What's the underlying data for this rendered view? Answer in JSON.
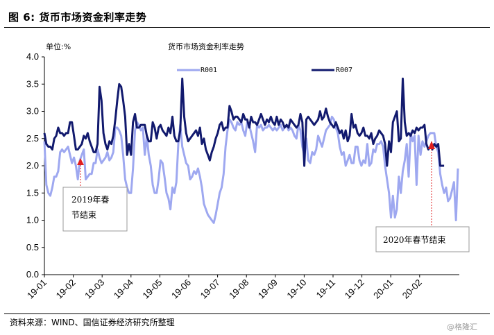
{
  "figure": {
    "title": "图 6:  货币市场资金利率走势",
    "source": "资料来源：WIND、国信证券经济研究所整理",
    "watermark": "@格隆汇"
  },
  "chart_data": {
    "type": "line",
    "title": "货币市场资金利率走势",
    "ylabel": "单位:%",
    "xlabel": "",
    "ylim": [
      0.0,
      4.0
    ],
    "yticks": [
      "0.0",
      "0.5",
      "1.0",
      "1.5",
      "2.0",
      "2.5",
      "3.0",
      "3.5",
      "4.0"
    ],
    "xticks": [
      "19-01",
      "19-02",
      "19-03",
      "19-04",
      "19-05",
      "19-06",
      "19-07",
      "19-08",
      "19-09",
      "19-10",
      "19-11",
      "19-12",
      "20-01",
      "20-02"
    ],
    "grid": false,
    "legend": "top",
    "colors": {
      "R001": "#9ea8f0",
      "R007": "#121a6e",
      "arrow": "#e02020"
    },
    "annotations": [
      {
        "text_line1": "2019年春",
        "text_line2": "节结束",
        "x": "19-02"
      },
      {
        "text_line1": "2020年春节结束",
        "x": "20-02"
      }
    ],
    "series": [
      {
        "name": "R001",
        "values": [
          2.45,
          1.65,
          1.5,
          1.45,
          1.6,
          1.8,
          1.8,
          1.9,
          2.25,
          2.3,
          2.25,
          2.3,
          2.35,
          2.2,
          2.05,
          2.15,
          2.0,
          1.75,
          2.1,
          2.2,
          2.3,
          1.75,
          1.8,
          1.85,
          1.85,
          2.05,
          2.05,
          2.3,
          2.15,
          2.05,
          2.1,
          2.15,
          2.25,
          2.1,
          2.15,
          2.25,
          2.7,
          2.7,
          2.65,
          2.55,
          2.2,
          1.75,
          1.6,
          1.5,
          1.5,
          1.95,
          2.65,
          2.8,
          2.75,
          2.65,
          2.7,
          2.2,
          2.55,
          2.2,
          2.0,
          1.65,
          1.5,
          1.5,
          1.75,
          2.1,
          2.05,
          1.8,
          1.5,
          1.4,
          1.2,
          1.6,
          1.5,
          1.7,
          2.4,
          2.75,
          2.35,
          2.2,
          2.05,
          2.0,
          1.75,
          1.8,
          1.9,
          1.85,
          1.95,
          1.8,
          1.6,
          1.3,
          1.2,
          1.1,
          1.05,
          1.0,
          0.95,
          1.1,
          1.3,
          1.5,
          1.6,
          1.85,
          2.35,
          2.65,
          2.85,
          2.8,
          2.7,
          2.65,
          2.8,
          2.75,
          2.8,
          2.65,
          2.55,
          2.8,
          2.75,
          2.6,
          2.45,
          2.25,
          2.75,
          2.7,
          2.75,
          2.65,
          2.7,
          2.7,
          2.75,
          2.7,
          2.65,
          2.7,
          2.65,
          2.7,
          2.75,
          2.65,
          2.7,
          2.75,
          2.65,
          2.7,
          2.65,
          2.55,
          2.5,
          2.75,
          2.65,
          2.35,
          2.2,
          2.5,
          2.1,
          2.05,
          2.25,
          2.2,
          2.3,
          2.55,
          2.45,
          2.35,
          2.5,
          2.65,
          2.7,
          2.75,
          2.9,
          2.85,
          2.7,
          2.6,
          2.35,
          2.2,
          2.25,
          2.0,
          2.1,
          2.2,
          2.05,
          2.05,
          2.35,
          2.35,
          2.1,
          2.0,
          2.1,
          2.05,
          2.4,
          2.0,
          2.05,
          2.3,
          2.25,
          2.4,
          2.4,
          2.45,
          2.35,
          2.0,
          1.75,
          1.5,
          1.05,
          1.45,
          1.05,
          1.2,
          1.8,
          1.5,
          1.9,
          2.1,
          2.4,
          1.8,
          2.6,
          2.45,
          2.55,
          1.65,
          2.55,
          2.2,
          2.45,
          2.35,
          2.45,
          2.55,
          2.6,
          2.6,
          2.6,
          2.35,
          2.25,
          1.85,
          1.65,
          1.5,
          1.6,
          1.35,
          1.4,
          1.55,
          1.7,
          1.0,
          1.95
        ]
      },
      {
        "name": "R007",
        "values": [
          2.6,
          2.4,
          2.35,
          2.35,
          2.3,
          2.5,
          2.55,
          2.7,
          2.6,
          2.6,
          2.55,
          2.6,
          2.6,
          2.8,
          2.8,
          2.55,
          2.3,
          2.3,
          2.35,
          2.4,
          2.55,
          2.5,
          2.6,
          2.45,
          2.35,
          2.25,
          2.25,
          2.4,
          3.45,
          3.2,
          2.6,
          2.4,
          2.3,
          2.45,
          2.4,
          2.55,
          2.85,
          3.2,
          3.5,
          3.45,
          3.2,
          2.9,
          2.2,
          2.4,
          2.2,
          2.8,
          2.95,
          2.7,
          2.7,
          2.75,
          2.75,
          2.75,
          2.55,
          2.45,
          2.45,
          2.8,
          2.7,
          2.5,
          2.7,
          2.75,
          2.65,
          2.6,
          2.55,
          2.7,
          2.6,
          2.9,
          2.55,
          2.45,
          2.45,
          2.65,
          3.6,
          2.9,
          2.6,
          2.45,
          2.5,
          2.55,
          2.6,
          2.65,
          2.55,
          2.7,
          2.4,
          2.5,
          2.3,
          2.2,
          2.1,
          2.25,
          2.35,
          2.5,
          2.6,
          2.75,
          2.8,
          2.65,
          2.7,
          2.7,
          3.1,
          3.0,
          2.85,
          2.9,
          2.9,
          2.85,
          2.8,
          2.95,
          2.85,
          2.85,
          2.7,
          2.9,
          2.8,
          2.8,
          2.75,
          2.85,
          2.95,
          2.85,
          2.75,
          2.85,
          2.8,
          2.9,
          2.8,
          2.75,
          2.9,
          2.75,
          2.85,
          2.8,
          2.7,
          2.75,
          2.7,
          2.85,
          2.8,
          2.75,
          2.7,
          2.75,
          2.95,
          2.8,
          2.0,
          2.85,
          2.9,
          2.85,
          2.8,
          2.75,
          2.8,
          2.85,
          3.0,
          2.85,
          2.9,
          3.05,
          2.9,
          2.8,
          2.75,
          2.7,
          2.8,
          2.7,
          2.6,
          2.65,
          2.5,
          2.65,
          2.45,
          2.55,
          2.95,
          2.7,
          2.75,
          2.6,
          2.55,
          2.6,
          2.7,
          2.55,
          2.55,
          2.5,
          2.6,
          2.4,
          2.5,
          2.55,
          2.65,
          2.6,
          2.55,
          2.4,
          2.0,
          2.45,
          2.25,
          2.8,
          2.9,
          3.0,
          2.45,
          2.5,
          3.6,
          2.8,
          2.55,
          2.6,
          2.55,
          2.65,
          2.6,
          2.7,
          2.65,
          2.7,
          2.7,
          2.75,
          2.4,
          2.3,
          2.35,
          2.3,
          2.4,
          2.35,
          2.4,
          2.0,
          2.0,
          2.0
        ]
      }
    ]
  }
}
